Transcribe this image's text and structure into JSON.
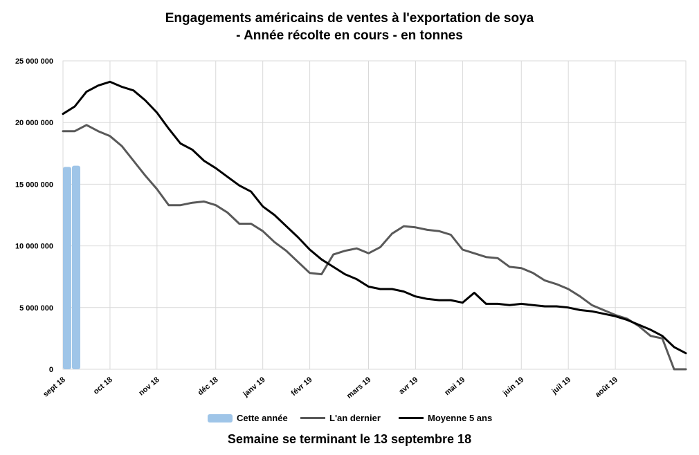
{
  "title_line1": "Engagements américains de ventes à l'exportation de soya",
  "title_line2": "- Année récolte en cours - en tonnes",
  "footer": "Semaine se terminant le 13 septembre 18",
  "colors": {
    "cette_annee": "#9fc5e8",
    "an_dernier": "#595959",
    "moyenne": "#000000",
    "grid": "#d9d9d9"
  },
  "chart_data": {
    "type": "line",
    "title": "Engagements américains de ventes à l'exportation de soya - Année récolte en cours - en tonnes",
    "xlabel": "Semaine se terminant le 13 septembre 18",
    "ylabel": "",
    "ylim": [
      0,
      25000000
    ],
    "yticks": [
      0,
      5000000,
      10000000,
      15000000,
      20000000,
      25000000
    ],
    "ytick_labels": [
      "0",
      "5 000 000",
      "10 000 000",
      "15 000 000",
      "20 000 000",
      "25 000 000"
    ],
    "xtick_labels": [
      "sept 18",
      "oct 18",
      "nov 18",
      "déc 18",
      "janv 19",
      "févr 19",
      "mars 19",
      "avr 19",
      "mai 19",
      "juin 19",
      "juil 19",
      "août 19"
    ],
    "legend": [
      "Cette année",
      "L'an dernier",
      "Moyenne 5 ans"
    ],
    "legend_position": "bottom",
    "grid": true,
    "series": [
      {
        "name": "Cette année",
        "type": "bar",
        "values": [
          16400000,
          16500000
        ]
      },
      {
        "name": "L'an dernier",
        "type": "line",
        "values": [
          19300000,
          19300000,
          19800000,
          19300000,
          18900000,
          18100000,
          16900000,
          15700000,
          14600000,
          13300000,
          13300000,
          13500000,
          13600000,
          13300000,
          12700000,
          11800000,
          11800000,
          11200000,
          10300000,
          9600000,
          8700000,
          7800000,
          7700000,
          9300000,
          9600000,
          9800000,
          9400000,
          9900000,
          11000000,
          11600000,
          11500000,
          11300000,
          11200000,
          10900000,
          9700000,
          9400000,
          9100000,
          9000000,
          8300000,
          8200000,
          7800000,
          7200000,
          6900000,
          6500000,
          5900000,
          5200000,
          4800000,
          4400000,
          4100000,
          3500000,
          2700000,
          2500000,
          0,
          0
        ]
      },
      {
        "name": "Moyenne 5 ans",
        "type": "line",
        "values": [
          20700000,
          21300000,
          22500000,
          23000000,
          23300000,
          22900000,
          22600000,
          21800000,
          20800000,
          19500000,
          18300000,
          17800000,
          16900000,
          16300000,
          15600000,
          14900000,
          14400000,
          13200000,
          12500000,
          11600000,
          10700000,
          9700000,
          8900000,
          8300000,
          7700000,
          7300000,
          6700000,
          6500000,
          6500000,
          6300000,
          5900000,
          5700000,
          5600000,
          5600000,
          5400000,
          6200000,
          5300000,
          5300000,
          5200000,
          5300000,
          5200000,
          5100000,
          5100000,
          5000000,
          4800000,
          4700000,
          4500000,
          4300000,
          4000000,
          3600000,
          3200000,
          2700000,
          1800000,
          1300000
        ]
      }
    ]
  }
}
